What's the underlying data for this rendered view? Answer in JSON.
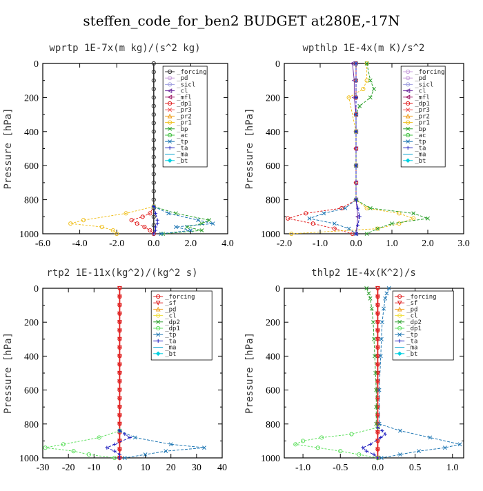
{
  "title": "steffen_code_for_ben2  BUDGET at280E,-17N",
  "chart_data": [
    {
      "type": "line",
      "title": "wprtp  1E-7x(m kg)/(s^2 kg)",
      "xlabel": "",
      "ylabel": "Pressure [hPa]",
      "xlim": [
        -6,
        4
      ],
      "ylim": [
        1000,
        0
      ],
      "xticks": [
        "-6.0",
        "-4.0",
        "-2.0",
        "0.0",
        "2.0",
        "4.0"
      ],
      "yticks": [
        "0",
        "200",
        "400",
        "600",
        "800",
        "1000"
      ],
      "legend_position": "top-right",
      "series": [
        {
          "name": "_forcing",
          "color": "#333333",
          "marker": "o",
          "y": [
            0,
            50,
            100,
            150,
            200,
            250,
            300,
            350,
            400,
            450,
            500,
            550,
            600,
            650,
            700,
            750,
            800,
            850,
            900,
            950,
            1000
          ],
          "x": [
            0,
            0,
            0,
            0,
            0,
            0,
            0,
            0,
            0,
            0,
            0,
            0,
            0,
            0,
            0,
            0,
            0,
            0,
            0,
            0,
            0
          ]
        },
        {
          "name": "_pd",
          "color": "#c8a0dc",
          "marker": "o",
          "y": [],
          "x": []
        },
        {
          "name": "_sicl",
          "color": "#a0a0e0",
          "marker": "o",
          "y": [],
          "x": []
        },
        {
          "name": "_cl",
          "color": "#7030a0",
          "marker": "<",
          "y": [],
          "x": []
        },
        {
          "name": "_mfl",
          "color": "#a0206a",
          "marker": "<",
          "y": [],
          "x": []
        },
        {
          "name": "_dp1",
          "color": "#e02020",
          "marker": "o",
          "y": [
            840,
            880,
            900,
            920,
            940,
            960,
            980,
            1000
          ],
          "x": [
            0,
            -0.2,
            -0.6,
            -1.2,
            -0.9,
            -0.5,
            -0.2,
            0
          ]
        },
        {
          "name": "_pr3",
          "color": "#f05050",
          "marker": "x",
          "y": [],
          "x": []
        },
        {
          "name": "_pr2",
          "color": "#f0a020",
          "marker": "^",
          "y": [],
          "x": []
        },
        {
          "name": "_pr1",
          "color": "#f0c020",
          "marker": "o",
          "y": [
            840,
            880,
            920,
            940,
            960,
            980,
            1000
          ],
          "x": [
            0,
            -1.5,
            -3.8,
            -4.5,
            -2.8,
            -2.2,
            -2.0
          ]
        },
        {
          "name": "_bp",
          "color": "#2ca02c",
          "marker": "x",
          "y": [
            840,
            880,
            920,
            940,
            960,
            980,
            1000
          ],
          "x": [
            0,
            1.2,
            3.0,
            2.6,
            1.8,
            2.6,
            0.5
          ]
        },
        {
          "name": "_ac",
          "color": "#40c040",
          "marker": "o",
          "y": [],
          "x": []
        },
        {
          "name": "_tp",
          "color": "#1f77b4",
          "marker": "x",
          "y": [
            840,
            880,
            920,
            940,
            960,
            980,
            1000
          ],
          "x": [
            0,
            0.8,
            2.4,
            3.2,
            1.2,
            2.0,
            0.4
          ]
        },
        {
          "name": "_ta",
          "color": "#2020c0",
          "marker": "+",
          "y": [
            840,
            880,
            920,
            940,
            960,
            980,
            1000
          ],
          "x": [
            0,
            0.1,
            0.2,
            0.2,
            0.1,
            0.1,
            0
          ]
        },
        {
          "name": "_ma",
          "color": "#00a0d0",
          "marker": "-",
          "y": [],
          "x": []
        },
        {
          "name": "_bt",
          "color": "#00d0e0",
          "marker": "D",
          "y": [],
          "x": []
        }
      ]
    },
    {
      "type": "line",
      "title": "wpthlp  1E-4x(m K)/s^2",
      "xlabel": "",
      "ylabel": "Pressure [hPa]",
      "xlim": [
        -2,
        3
      ],
      "ylim": [
        1000,
        0
      ],
      "xticks": [
        "-2.0",
        "-1.0",
        "0.0",
        "1.0",
        "2.0",
        "3.0"
      ],
      "yticks": [
        "0",
        "200",
        "400",
        "600",
        "800",
        "1000"
      ],
      "legend_position": "top-right",
      "series": [
        {
          "name": "_forcing",
          "color": "#c8a0dc",
          "marker": "o",
          "y": [],
          "x": []
        },
        {
          "name": "_pd",
          "color": "#c8a0dc",
          "marker": "o",
          "y": [],
          "x": []
        },
        {
          "name": "_sicl",
          "color": "#a0a0e0",
          "marker": "o",
          "y": [],
          "x": []
        },
        {
          "name": "_cl",
          "color": "#7030a0",
          "marker": "<",
          "y": [
            0,
            100,
            200,
            300,
            400,
            500,
            600,
            700,
            800,
            900,
            1000
          ],
          "x": [
            -0.1,
            -0.05,
            -0.05,
            0,
            0,
            0,
            0,
            0,
            0,
            0.05,
            0
          ]
        },
        {
          "name": "_mfl",
          "color": "#a0206a",
          "marker": "<",
          "y": [],
          "x": []
        },
        {
          "name": "_dp1",
          "color": "#e02020",
          "marker": "o",
          "y": [
            0,
            100,
            200,
            300,
            400,
            500,
            600,
            700,
            800,
            850,
            880,
            910,
            940,
            970,
            1000
          ],
          "x": [
            0,
            0,
            0,
            0,
            0,
            0,
            0,
            0,
            0,
            -0.4,
            -1.4,
            -1.9,
            -1.2,
            -0.6,
            -0.1
          ]
        },
        {
          "name": "_pr3",
          "color": "#f05050",
          "marker": "x",
          "y": [],
          "x": []
        },
        {
          "name": "_pr2",
          "color": "#f0a020",
          "marker": "^",
          "y": [],
          "x": []
        },
        {
          "name": "_pr1",
          "color": "#f0c020",
          "marker": "o",
          "y": [
            0,
            100,
            150,
            200,
            400,
            600,
            800,
            850,
            880,
            910,
            940,
            970,
            1000
          ],
          "x": [
            0.3,
            0.3,
            0.2,
            -0.2,
            0,
            0,
            0,
            0.3,
            1.2,
            1.6,
            1.2,
            0.6,
            -1.8
          ]
        },
        {
          "name": "_bp",
          "color": "#2ca02c",
          "marker": "x",
          "y": [
            0,
            100,
            150,
            200,
            250,
            300,
            400,
            600,
            800,
            850,
            880,
            910,
            940,
            970,
            1000
          ],
          "x": [
            0.3,
            0.4,
            0.5,
            0.4,
            0.1,
            0,
            0,
            0,
            0,
            0.4,
            1.6,
            2.0,
            1.0,
            0.6,
            0.3
          ]
        },
        {
          "name": "_ac",
          "color": "#40c040",
          "marker": "o",
          "y": [],
          "x": []
        },
        {
          "name": "_tp",
          "color": "#1f77b4",
          "marker": "x",
          "y": [
            0,
            100,
            200,
            300,
            400,
            600,
            800,
            850,
            880,
            910,
            940,
            970,
            1000
          ],
          "x": [
            0,
            0,
            0,
            0,
            0,
            0,
            0,
            -0.3,
            -0.9,
            -1.3,
            -0.6,
            -0.2,
            0
          ]
        },
        {
          "name": "_ta",
          "color": "#2020c0",
          "marker": "+",
          "y": [
            0,
            200,
            400,
            600,
            800,
            850,
            900,
            950,
            1000
          ],
          "x": [
            0,
            0,
            0,
            0,
            0,
            0.05,
            0.1,
            0.05,
            0
          ]
        },
        {
          "name": "_ma",
          "color": "#00a0d0",
          "marker": "-",
          "y": [],
          "x": []
        },
        {
          "name": "_bt",
          "color": "#00d0e0",
          "marker": "D",
          "y": [],
          "x": []
        }
      ]
    },
    {
      "type": "line",
      "title": "rtp2  1E-11x(kg^2)/(kg^2 s)",
      "xlabel": "",
      "ylabel": "Pressure [hPa]",
      "xlim": [
        -30,
        40
      ],
      "ylim": [
        1000,
        0
      ],
      "xticks": [
        "-30",
        "-20",
        "-10",
        "0",
        "10",
        "20",
        "30",
        "40"
      ],
      "yticks": [
        "0",
        "200",
        "400",
        "600",
        "800",
        "1000"
      ],
      "legend_position": "top-right",
      "series": [
        {
          "name": "_forcing",
          "color": "#e02020",
          "marker": "o",
          "y": [
            0,
            50,
            100,
            150,
            200,
            250,
            300,
            350,
            400,
            450,
            500,
            550,
            600,
            650,
            700,
            750,
            800,
            850,
            900,
            950,
            1000
          ],
          "x": [
            0,
            0,
            0,
            0,
            0,
            0,
            0,
            0,
            0,
            0,
            0,
            0,
            0,
            0,
            0,
            0,
            0,
            0,
            0,
            0,
            0
          ]
        },
        {
          "name": "_sf",
          "color": "#e02020",
          "marker": "v",
          "y": [
            0,
            50,
            100,
            150,
            200,
            250,
            300,
            350,
            400,
            450,
            500,
            550,
            600,
            650,
            700,
            750,
            800,
            850,
            900,
            950,
            1000
          ],
          "x": [
            0,
            0,
            0,
            0,
            0,
            0,
            0,
            0,
            0,
            0,
            0,
            0,
            0,
            0,
            0,
            0,
            0,
            0,
            0,
            0,
            0
          ]
        },
        {
          "name": "_pd",
          "color": "#f0a020",
          "marker": "^",
          "y": [],
          "x": []
        },
        {
          "name": "_cl",
          "color": "#f0e040",
          "marker": "o",
          "y": [],
          "x": []
        },
        {
          "name": "_dp2",
          "color": "#2ca02c",
          "marker": "x",
          "y": [],
          "x": []
        },
        {
          "name": "_dp1",
          "color": "#60e060",
          "marker": "o",
          "y": [
            840,
            880,
            920,
            940,
            960,
            980,
            1000
          ],
          "x": [
            0,
            -8,
            -22,
            -29,
            -18,
            -12,
            -2
          ]
        },
        {
          "name": "_tp",
          "color": "#1f77b4",
          "marker": "x",
          "y": [
            840,
            880,
            920,
            940,
            960,
            980,
            1000
          ],
          "x": [
            0,
            6,
            20,
            33,
            18,
            10,
            2
          ]
        },
        {
          "name": "_ta",
          "color": "#2020c0",
          "marker": "+",
          "y": [
            840,
            860,
            880,
            920,
            940,
            960,
            980,
            1000
          ],
          "x": [
            0,
            2,
            4,
            -2,
            -5,
            -2,
            0,
            0
          ]
        },
        {
          "name": "_ma",
          "color": "#00a0d0",
          "marker": "-",
          "y": [],
          "x": []
        },
        {
          "name": "_bt",
          "color": "#00d0e0",
          "marker": "D",
          "y": [],
          "x": []
        }
      ]
    },
    {
      "type": "line",
      "title": "thlp2  1E-4x(K^2)/s",
      "xlabel": "",
      "ylabel": "Pressure [hPa]",
      "xlim": [
        -1.25,
        1.15
      ],
      "ylim": [
        1000,
        0
      ],
      "xticks": [
        "-1.0",
        "-0.5",
        "0.0",
        "0.5",
        "1.0"
      ],
      "yticks": [
        "0",
        "200",
        "400",
        "600",
        "800",
        "1000"
      ],
      "legend_position": "top-right",
      "series": [
        {
          "name": "_forcing",
          "color": "#e02020",
          "marker": "o",
          "y": [
            0,
            50,
            100,
            150,
            200,
            250,
            300,
            350,
            400,
            450,
            500,
            550,
            600,
            650,
            700,
            750,
            800,
            850,
            900,
            950,
            1000
          ],
          "x": [
            0,
            0,
            0,
            0,
            0,
            0,
            0,
            0,
            0,
            0,
            0,
            0,
            0,
            0,
            0,
            0,
            0,
            0,
            0,
            0,
            0
          ]
        },
        {
          "name": "_sf",
          "color": "#e02020",
          "marker": "v",
          "y": [
            0,
            50,
            100,
            150,
            200,
            250,
            300,
            350,
            400,
            450,
            500,
            550,
            600,
            650,
            700,
            750,
            800,
            850,
            900,
            950,
            1000
          ],
          "x": [
            0,
            0,
            0,
            0,
            0,
            0,
            0,
            0,
            0,
            0,
            0,
            0,
            0,
            0,
            0,
            0,
            0,
            0,
            0,
            0,
            0
          ]
        },
        {
          "name": "_pd",
          "color": "#f0a020",
          "marker": "^",
          "y": [],
          "x": []
        },
        {
          "name": "_cl",
          "color": "#f0e040",
          "marker": "o",
          "y": [],
          "x": []
        },
        {
          "name": "_dp2",
          "color": "#2ca02c",
          "marker": "x",
          "y": [
            0,
            30,
            60,
            120,
            200,
            300,
            400,
            500,
            600,
            700,
            800
          ],
          "x": [
            -0.15,
            -0.12,
            -0.1,
            -0.08,
            -0.06,
            -0.05,
            -0.04,
            -0.03,
            -0.02,
            -0.02,
            -0.02
          ]
        },
        {
          "name": "_dp1",
          "color": "#60e060",
          "marker": "o",
          "y": [
            820,
            860,
            880,
            900,
            920,
            940,
            960,
            980,
            1000
          ],
          "x": [
            0,
            -0.35,
            -0.75,
            -1.0,
            -1.1,
            -0.8,
            -0.5,
            -0.25,
            0
          ]
        },
        {
          "name": "_tp",
          "color": "#1f77b4",
          "marker": "x",
          "y": [
            0,
            30,
            60,
            120,
            200,
            300,
            400,
            600,
            800,
            840,
            880,
            920,
            940,
            960,
            980,
            1000
          ],
          "x": [
            0.15,
            0.12,
            0.1,
            0.08,
            0.06,
            0.05,
            0.04,
            0.02,
            0.02,
            0.3,
            0.7,
            1.1,
            0.9,
            0.55,
            0.3,
            0.05
          ]
        },
        {
          "name": "_ta",
          "color": "#2020c0",
          "marker": "+",
          "y": [
            820,
            840,
            860,
            880,
            920,
            940,
            960,
            980,
            1000
          ],
          "x": [
            0,
            0.06,
            0.1,
            0.04,
            -0.1,
            -0.2,
            -0.15,
            -0.05,
            0
          ]
        },
        {
          "name": "_ma",
          "color": "#00a0d0",
          "marker": "-",
          "y": [],
          "x": []
        },
        {
          "name": "_bt",
          "color": "#00d0e0",
          "marker": "D",
          "y": [],
          "x": []
        }
      ]
    }
  ]
}
